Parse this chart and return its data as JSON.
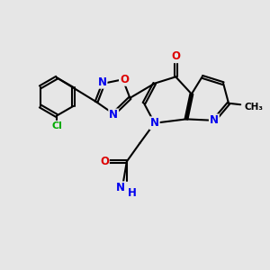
{
  "bg_color": "#e6e6e6",
  "bond_color": "#000000",
  "bond_width": 1.5,
  "atom_colors": {
    "N": "#0000ee",
    "O": "#dd0000",
    "Cl": "#00aa00",
    "C": "#000000"
  }
}
